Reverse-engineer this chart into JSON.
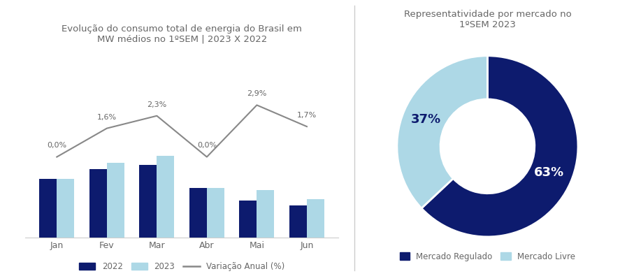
{
  "bar_title": "Evolução do consumo total de energia do Brasil em\nMW médios no 1ºSEM | 2023 X 2022",
  "pie_title": "Representatividade por mercado no\n1ºSEM 2023",
  "months": [
    "Jan",
    "Fev",
    "Mar",
    "Abr",
    "Mai",
    "Jun"
  ],
  "values_2022": [
    66762,
    68430,
    69118,
    65256,
    63169,
    62376
  ],
  "values_2023": [
    66794,
    69522,
    70714,
    65247,
    64979,
    63418
  ],
  "variation": [
    0.0,
    1.6,
    2.3,
    0.0,
    2.9,
    1.7
  ],
  "bar_color_2022": "#0d1b6e",
  "bar_color_2023": "#add8e6",
  "line_color": "#888888",
  "bar_label_color_2022": "#ffffff",
  "bar_label_color_2023": "#0d1b6e",
  "pie_values": [
    63,
    37
  ],
  "pie_labels": [
    "63%",
    "37%"
  ],
  "pie_colors": [
    "#0d1b6e",
    "#add8e6"
  ],
  "pie_legend_labels": [
    "Mercado Regulado",
    "Mercado Livre"
  ],
  "background_color": "#ffffff",
  "title_color": "#666666",
  "axis_color": "#cccccc",
  "tick_color": "#666666",
  "legend_line_label": "Variação Anual (%)"
}
